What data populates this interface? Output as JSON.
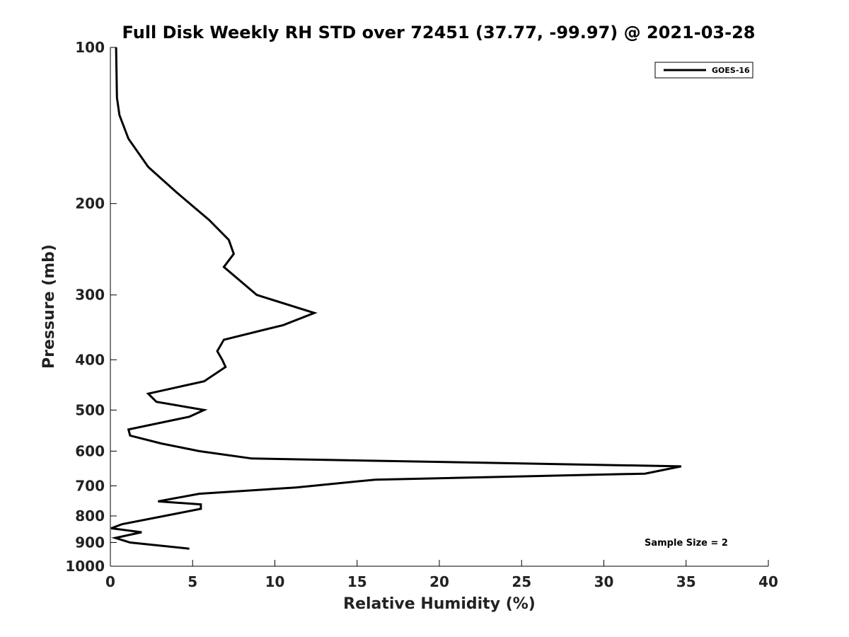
{
  "chart_data": {
    "type": "line",
    "title": "Full Disk Weekly RH STD over 72451 (37.77, -99.97) @ 2021-03-28",
    "xlabel": "Relative Humidity (%)",
    "ylabel": "Pressure (mb)",
    "xlim": [
      0,
      40
    ],
    "ylim": [
      1000,
      100
    ],
    "y_scale": "log",
    "x_ticks": [
      "0",
      "5",
      "10",
      "15",
      "20",
      "25",
      "30",
      "35",
      "40"
    ],
    "y_ticks": [
      "100",
      "200",
      "300",
      "400",
      "500",
      "600",
      "700",
      "800",
      "900",
      "1000"
    ],
    "grid": false,
    "legend_position": "top-right",
    "annotation": "Sample Size = 2",
    "series": [
      {
        "name": "GOES-16",
        "color": "#000000",
        "points": [
          [
            0.35,
            100
          ],
          [
            0.4,
            125
          ],
          [
            0.55,
            135
          ],
          [
            1.1,
            150
          ],
          [
            2.3,
            170
          ],
          [
            4.0,
            190
          ],
          [
            6.0,
            215
          ],
          [
            7.2,
            235
          ],
          [
            7.5,
            250
          ],
          [
            6.9,
            265
          ],
          [
            8.9,
            300
          ],
          [
            12.4,
            325
          ],
          [
            10.5,
            343
          ],
          [
            6.9,
            366
          ],
          [
            6.5,
            385
          ],
          [
            6.8,
            400
          ],
          [
            7.0,
            413
          ],
          [
            5.7,
            440
          ],
          [
            2.3,
            465
          ],
          [
            2.8,
            482
          ],
          [
            5.7,
            500
          ],
          [
            4.8,
            515
          ],
          [
            1.1,
            545
          ],
          [
            1.2,
            560
          ],
          [
            3.1,
            580
          ],
          [
            5.4,
            600
          ],
          [
            8.6,
            620
          ],
          [
            34.7,
            642
          ],
          [
            32.5,
            663
          ],
          [
            16.1,
            681
          ],
          [
            11.3,
            705
          ],
          [
            5.4,
            725
          ],
          [
            2.9,
            750
          ],
          [
            5.5,
            760
          ],
          [
            5.5,
            775
          ],
          [
            0.7,
            830
          ],
          [
            0.05,
            845
          ],
          [
            1.9,
            860
          ],
          [
            0.3,
            882
          ],
          [
            1.2,
            900
          ],
          [
            4.8,
            925
          ]
        ]
      }
    ]
  }
}
